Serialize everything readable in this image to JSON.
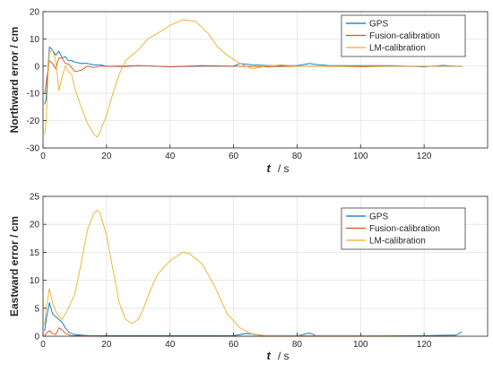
{
  "chart_data": [
    {
      "type": "line",
      "xlabel_italic": "t",
      "xlabel_unit": "/ s",
      "ylabel": "Northward error / cm",
      "xlim": [
        0,
        140
      ],
      "ylim": [
        -30,
        20
      ],
      "xticks": [
        0,
        20,
        40,
        60,
        80,
        100,
        120
      ],
      "yticks": [
        20,
        10,
        0,
        -10,
        -20,
        -30
      ],
      "grid": true,
      "legend": "top-right",
      "series": [
        {
          "name": "GPS",
          "color": "#0072bd",
          "x": [
            0.5,
            1,
            2,
            3,
            4,
            5,
            6,
            7,
            8,
            9,
            10,
            12,
            14,
            16,
            18,
            20,
            25,
            30,
            40,
            50,
            60,
            62,
            66,
            70,
            80,
            84,
            86,
            90,
            100,
            110,
            120,
            126,
            130,
            132
          ],
          "y": [
            -14,
            -12,
            7,
            6,
            4,
            5.5,
            3,
            3.5,
            2,
            2,
            1.5,
            1,
            1,
            0.5,
            0.5,
            0,
            0,
            0.2,
            -0.2,
            0.2,
            0,
            1,
            0.5,
            0.3,
            0.2,
            1,
            0.6,
            0.2,
            0.2,
            0.2,
            -0.2,
            0.3,
            0,
            0
          ]
        },
        {
          "name": "Fusion-calibration",
          "color": "#d95319",
          "x": [
            0.5,
            1,
            2,
            3,
            4,
            5,
            6,
            7,
            8,
            9,
            10,
            12,
            14,
            16,
            18,
            20,
            25,
            30,
            40,
            50,
            60,
            70,
            80,
            90,
            100,
            110,
            120,
            130,
            132
          ],
          "y": [
            -10,
            -6,
            2,
            1,
            -1,
            3,
            3,
            1,
            0.8,
            -0.5,
            -2,
            -1.5,
            0,
            -0.5,
            0,
            0,
            -0.2,
            0.2,
            -0.2,
            0,
            0,
            -0.2,
            0,
            0,
            -0.2,
            0,
            0,
            0,
            0
          ]
        },
        {
          "name": "LM-calibration",
          "color": "#edb120",
          "x": [
            0.5,
            1,
            1.5,
            2,
            3,
            4,
            5,
            6,
            7,
            8,
            9,
            10,
            12,
            14,
            16,
            17,
            18,
            20,
            22,
            24,
            26,
            28,
            30,
            33,
            36,
            40,
            44,
            48,
            52,
            55,
            58,
            62,
            66,
            70,
            75,
            80,
            90,
            100,
            110,
            120,
            130,
            132
          ],
          "y": [
            -25,
            -20,
            -5,
            5,
            6,
            2,
            -9,
            -4,
            0,
            -2,
            -3,
            -8,
            -15,
            -21,
            -25,
            -26,
            -24,
            -18,
            -10,
            -3,
            2,
            4,
            6,
            10,
            12,
            15,
            17,
            16.5,
            12,
            7,
            4,
            1,
            -1,
            0,
            0.5,
            0,
            0,
            0,
            0,
            0,
            0,
            0
          ]
        }
      ]
    },
    {
      "type": "line",
      "xlabel_italic": "t",
      "xlabel_unit": "/ s",
      "ylabel": "Eastward error / cm",
      "xlim": [
        0,
        140
      ],
      "ylim": [
        0,
        25
      ],
      "xticks": [
        0,
        20,
        40,
        60,
        80,
        100,
        120
      ],
      "yticks": [
        25,
        20,
        15,
        10,
        5,
        0
      ],
      "grid": true,
      "legend": "top-right",
      "series": [
        {
          "name": "GPS",
          "color": "#0072bd",
          "x": [
            0.5,
            1,
            2,
            3,
            4,
            5,
            6,
            7,
            8,
            9,
            10,
            12,
            14,
            16,
            20,
            30,
            40,
            50,
            60,
            64,
            70,
            80,
            84,
            86,
            90,
            100,
            120,
            130,
            132
          ],
          "y": [
            1,
            3,
            6,
            4,
            3.5,
            3,
            2.5,
            1.5,
            0.8,
            0.5,
            0.3,
            0.2,
            0.1,
            0.1,
            0.1,
            0.1,
            0.1,
            0.1,
            0.1,
            0.5,
            0.1,
            0.1,
            0.6,
            0.1,
            0.1,
            0.1,
            0.1,
            0.2,
            0.8
          ]
        },
        {
          "name": "Fusion-calibration",
          "color": "#d95319",
          "x": [
            0.5,
            1,
            2,
            3,
            4,
            5,
            6,
            7,
            8,
            9,
            10,
            12,
            14,
            20,
            30,
            40,
            60,
            80,
            100,
            120,
            132
          ],
          "y": [
            0,
            0.5,
            1,
            0.5,
            0.3,
            1.5,
            1.2,
            0.5,
            0.3,
            0.1,
            0.1,
            0.1,
            0.1,
            0,
            0,
            0,
            0,
            0,
            0,
            0,
            0
          ]
        },
        {
          "name": "LM-calibration",
          "color": "#edb120",
          "x": [
            0.5,
            1,
            2,
            3,
            4,
            5,
            6,
            7,
            8,
            10,
            12,
            14,
            16,
            17,
            18,
            20,
            22,
            24,
            26,
            28,
            30,
            32,
            34,
            36,
            40,
            44,
            46,
            50,
            54,
            58,
            62,
            66,
            70,
            80,
            90,
            100,
            120,
            132
          ],
          "y": [
            2,
            5,
            8.5,
            6,
            4.5,
            3.5,
            3,
            4,
            5,
            7.5,
            13,
            19,
            22,
            22.5,
            22,
            18,
            12,
            6,
            3,
            2.3,
            3,
            5.5,
            8.5,
            11,
            13.5,
            15,
            14.8,
            13,
            9,
            4,
            1.5,
            0.3,
            0.1,
            0.1,
            0.1,
            0.1,
            0,
            0
          ]
        }
      ]
    }
  ]
}
